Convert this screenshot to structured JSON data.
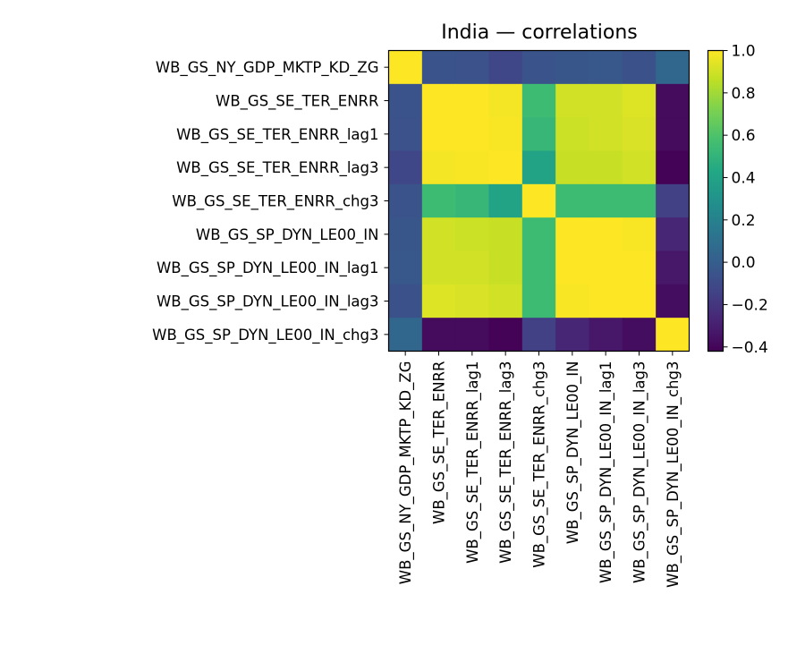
{
  "chart_data": {
    "type": "heatmap",
    "title": "India — correlations",
    "xlabel": "",
    "ylabel": "",
    "labels": [
      "WB_GS_NY_GDP_MKTP_KD_ZG",
      "WB_GS_SE_TER_ENRR",
      "WB_GS_SE_TER_ENRR_lag1",
      "WB_GS_SE_TER_ENRR_lag3",
      "WB_GS_SE_TER_ENRR_chg3",
      "WB_GS_SP_DYN_LE00_IN",
      "WB_GS_SP_DYN_LE00_IN_lag1",
      "WB_GS_SP_DYN_LE00_IN_lag3",
      "WB_GS_SP_DYN_LE00_IN_chg3"
    ],
    "matrix": [
      [
        1.0,
        -0.05,
        -0.06,
        -0.12,
        -0.05,
        -0.04,
        -0.03,
        -0.07,
        0.05
      ],
      [
        -0.05,
        1.0,
        1.0,
        0.98,
        0.55,
        0.9,
        0.9,
        0.93,
        -0.38
      ],
      [
        -0.06,
        1.0,
        1.0,
        0.99,
        0.52,
        0.89,
        0.9,
        0.92,
        -0.38
      ],
      [
        -0.12,
        0.98,
        0.99,
        1.0,
        0.4,
        0.88,
        0.88,
        0.9,
        -0.41
      ],
      [
        -0.05,
        0.55,
        0.52,
        0.4,
        1.0,
        0.55,
        0.55,
        0.55,
        -0.15
      ],
      [
        -0.04,
        0.9,
        0.89,
        0.88,
        0.55,
        1.0,
        1.0,
        0.99,
        -0.27
      ],
      [
        -0.03,
        0.9,
        0.9,
        0.88,
        0.55,
        1.0,
        1.0,
        1.0,
        -0.33
      ],
      [
        -0.07,
        0.93,
        0.92,
        0.9,
        0.55,
        0.99,
        1.0,
        1.0,
        -0.37
      ],
      [
        0.05,
        -0.38,
        -0.38,
        -0.41,
        -0.15,
        -0.27,
        -0.33,
        -0.37,
        1.0
      ]
    ],
    "vmin": -0.42,
    "vmax": 1.0,
    "colormap": "viridis",
    "colorbar_ticks": [
      {
        "value": 1.0,
        "label": "1.0"
      },
      {
        "value": 0.8,
        "label": "0.8"
      },
      {
        "value": 0.6,
        "label": "0.6"
      },
      {
        "value": 0.4,
        "label": "0.4"
      },
      {
        "value": 0.2,
        "label": "0.2"
      },
      {
        "value": 0.0,
        "label": "0.0"
      },
      {
        "value": -0.2,
        "label": "−0.2"
      },
      {
        "value": -0.4,
        "label": "−0.4"
      }
    ],
    "grid": false,
    "colorbar_position": "right"
  }
}
